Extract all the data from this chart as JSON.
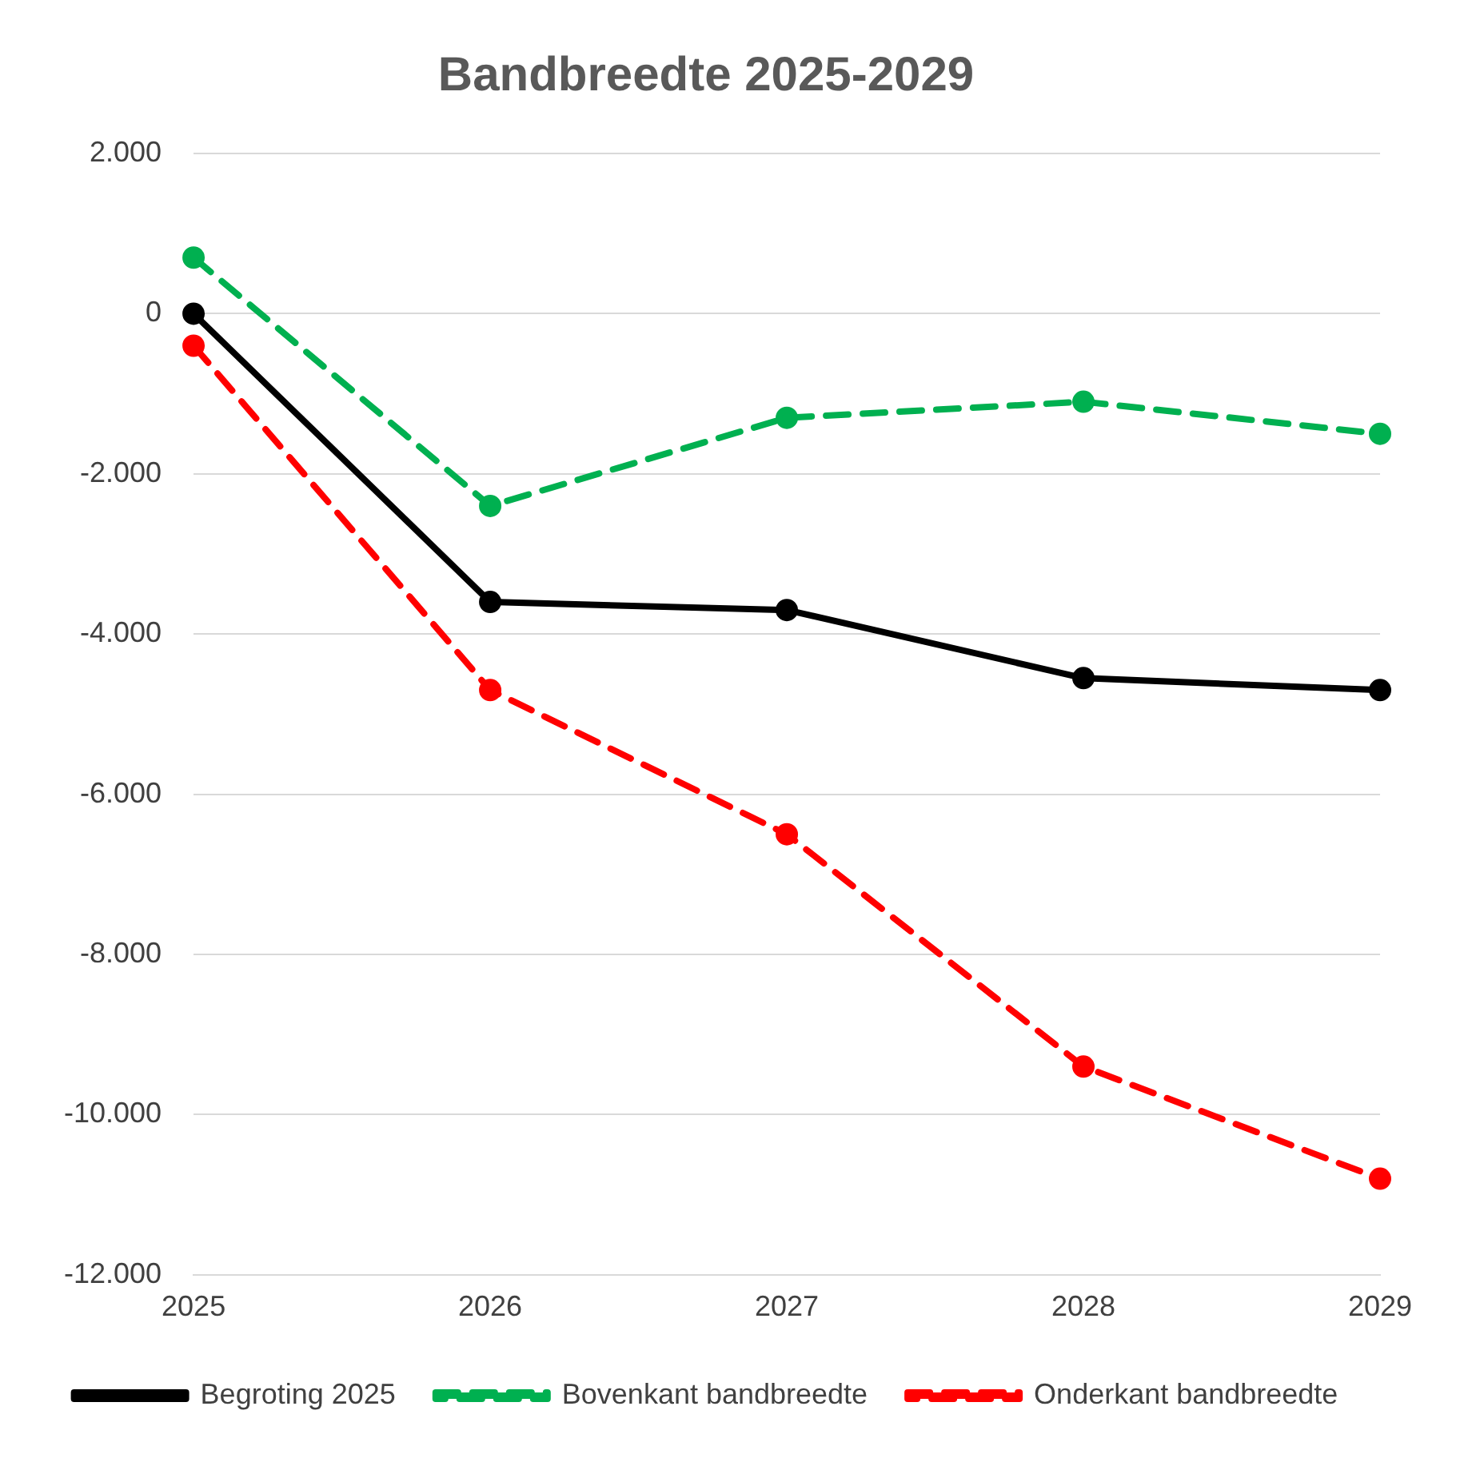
{
  "chart_data": {
    "type": "line",
    "title": "Bandbreedte 2025-2029",
    "categories": [
      "2025",
      "2026",
      "2027",
      "2028",
      "2029"
    ],
    "series": [
      {
        "name": "Begroting 2025",
        "color": "#000000",
        "line_style": "solid",
        "values": [
          0,
          -3600,
          -3700,
          -4550,
          -4700
        ]
      },
      {
        "name": "Bovenkant bandbreedte",
        "color": "#00b050",
        "line_style": "dashed",
        "values": [
          700,
          -2400,
          -1300,
          -1100,
          -1500
        ]
      },
      {
        "name": "Onderkant bandbreedte",
        "color": "#ff0000",
        "line_style": "dashed",
        "values": [
          -400,
          -4700,
          -6500,
          -9400,
          -10800
        ]
      }
    ],
    "ylim": [
      -12000,
      2000
    ],
    "yticks": [
      {
        "value": 2000,
        "label": "2.000"
      },
      0,
      {
        "value": -2000,
        "label": "-2.000"
      },
      {
        "value": -4000,
        "label": "-4.000"
      },
      {
        "value": -6000,
        "label": "-6.000"
      },
      {
        "value": -8000,
        "label": "-8.000"
      },
      {
        "value": -10000,
        "label": "-10.000"
      },
      {
        "value": -12000,
        "label": "-12.000"
      }
    ],
    "grid": "y",
    "legend": "bottom",
    "marker": "circle"
  }
}
